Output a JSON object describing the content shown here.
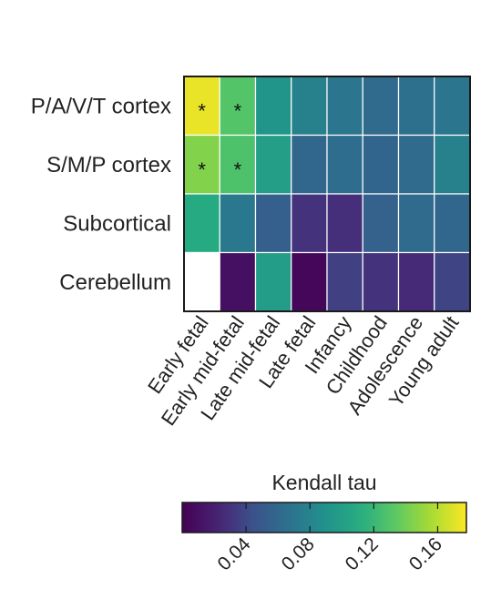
{
  "chart_data": {
    "type": "heatmap",
    "title": "",
    "xlabel": "",
    "ylabel": "",
    "rows": [
      "P/A/V/T cortex",
      "S/M/P cortex",
      "Subcortical",
      "Cerebellum"
    ],
    "columns": [
      "Early fetal",
      "Early mid-fetal",
      "Late mid-fetal",
      "Late fetal",
      "Infancy",
      "Childhood",
      "Adolescence",
      "Young adult"
    ],
    "values": [
      [
        0.173,
        0.13,
        0.092,
        0.078,
        0.07,
        0.062,
        0.066,
        0.07
      ],
      [
        0.145,
        0.128,
        0.1,
        0.06,
        0.064,
        0.058,
        0.062,
        0.078
      ],
      [
        0.11,
        0.072,
        0.054,
        0.03,
        0.028,
        0.056,
        0.062,
        0.06
      ],
      [
        null,
        0.01,
        0.098,
        0.004,
        0.036,
        0.03,
        0.026,
        0.038
      ]
    ],
    "significance_marker": "*",
    "significant": [
      [
        0,
        0
      ],
      [
        0,
        1
      ],
      [
        1,
        0
      ],
      [
        1,
        1
      ]
    ],
    "colorbar": {
      "title": "Kendall tau",
      "colormap": "viridis",
      "range": [
        0.0,
        0.178
      ],
      "ticks": [
        0.04,
        0.08,
        0.12,
        0.16
      ],
      "tick_labels": [
        "0.04",
        "0.08",
        "0.12",
        "0.16"
      ]
    },
    "missing_color": "#ffffff",
    "grid_line_color": "#ffffff"
  }
}
